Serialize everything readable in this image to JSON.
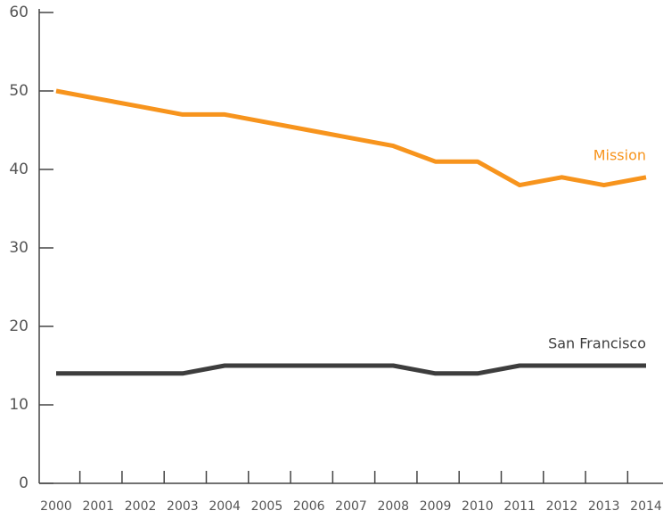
{
  "chart_data": {
    "type": "line",
    "categories": [
      "2000",
      "2001",
      "2002",
      "2003",
      "2004",
      "2005",
      "2006",
      "2007",
      "2008",
      "2009",
      "2010",
      "2011",
      "2012",
      "2013",
      "2014"
    ],
    "series": [
      {
        "name": "Mission",
        "color": "#f7941d",
        "values": [
          50,
          49,
          48,
          47,
          47,
          46,
          45,
          44,
          43,
          41,
          41,
          38,
          39,
          38,
          39
        ]
      },
      {
        "name": "San Francisco",
        "color": "#3d3d3d",
        "values": [
          14,
          14,
          14,
          14,
          15,
          15,
          15,
          15,
          15,
          14,
          14,
          15,
          15,
          15,
          15
        ]
      }
    ],
    "ylim": [
      0,
      60
    ],
    "yticks": [
      0,
      10,
      20,
      30,
      40,
      50,
      60
    ],
    "grid": false
  }
}
